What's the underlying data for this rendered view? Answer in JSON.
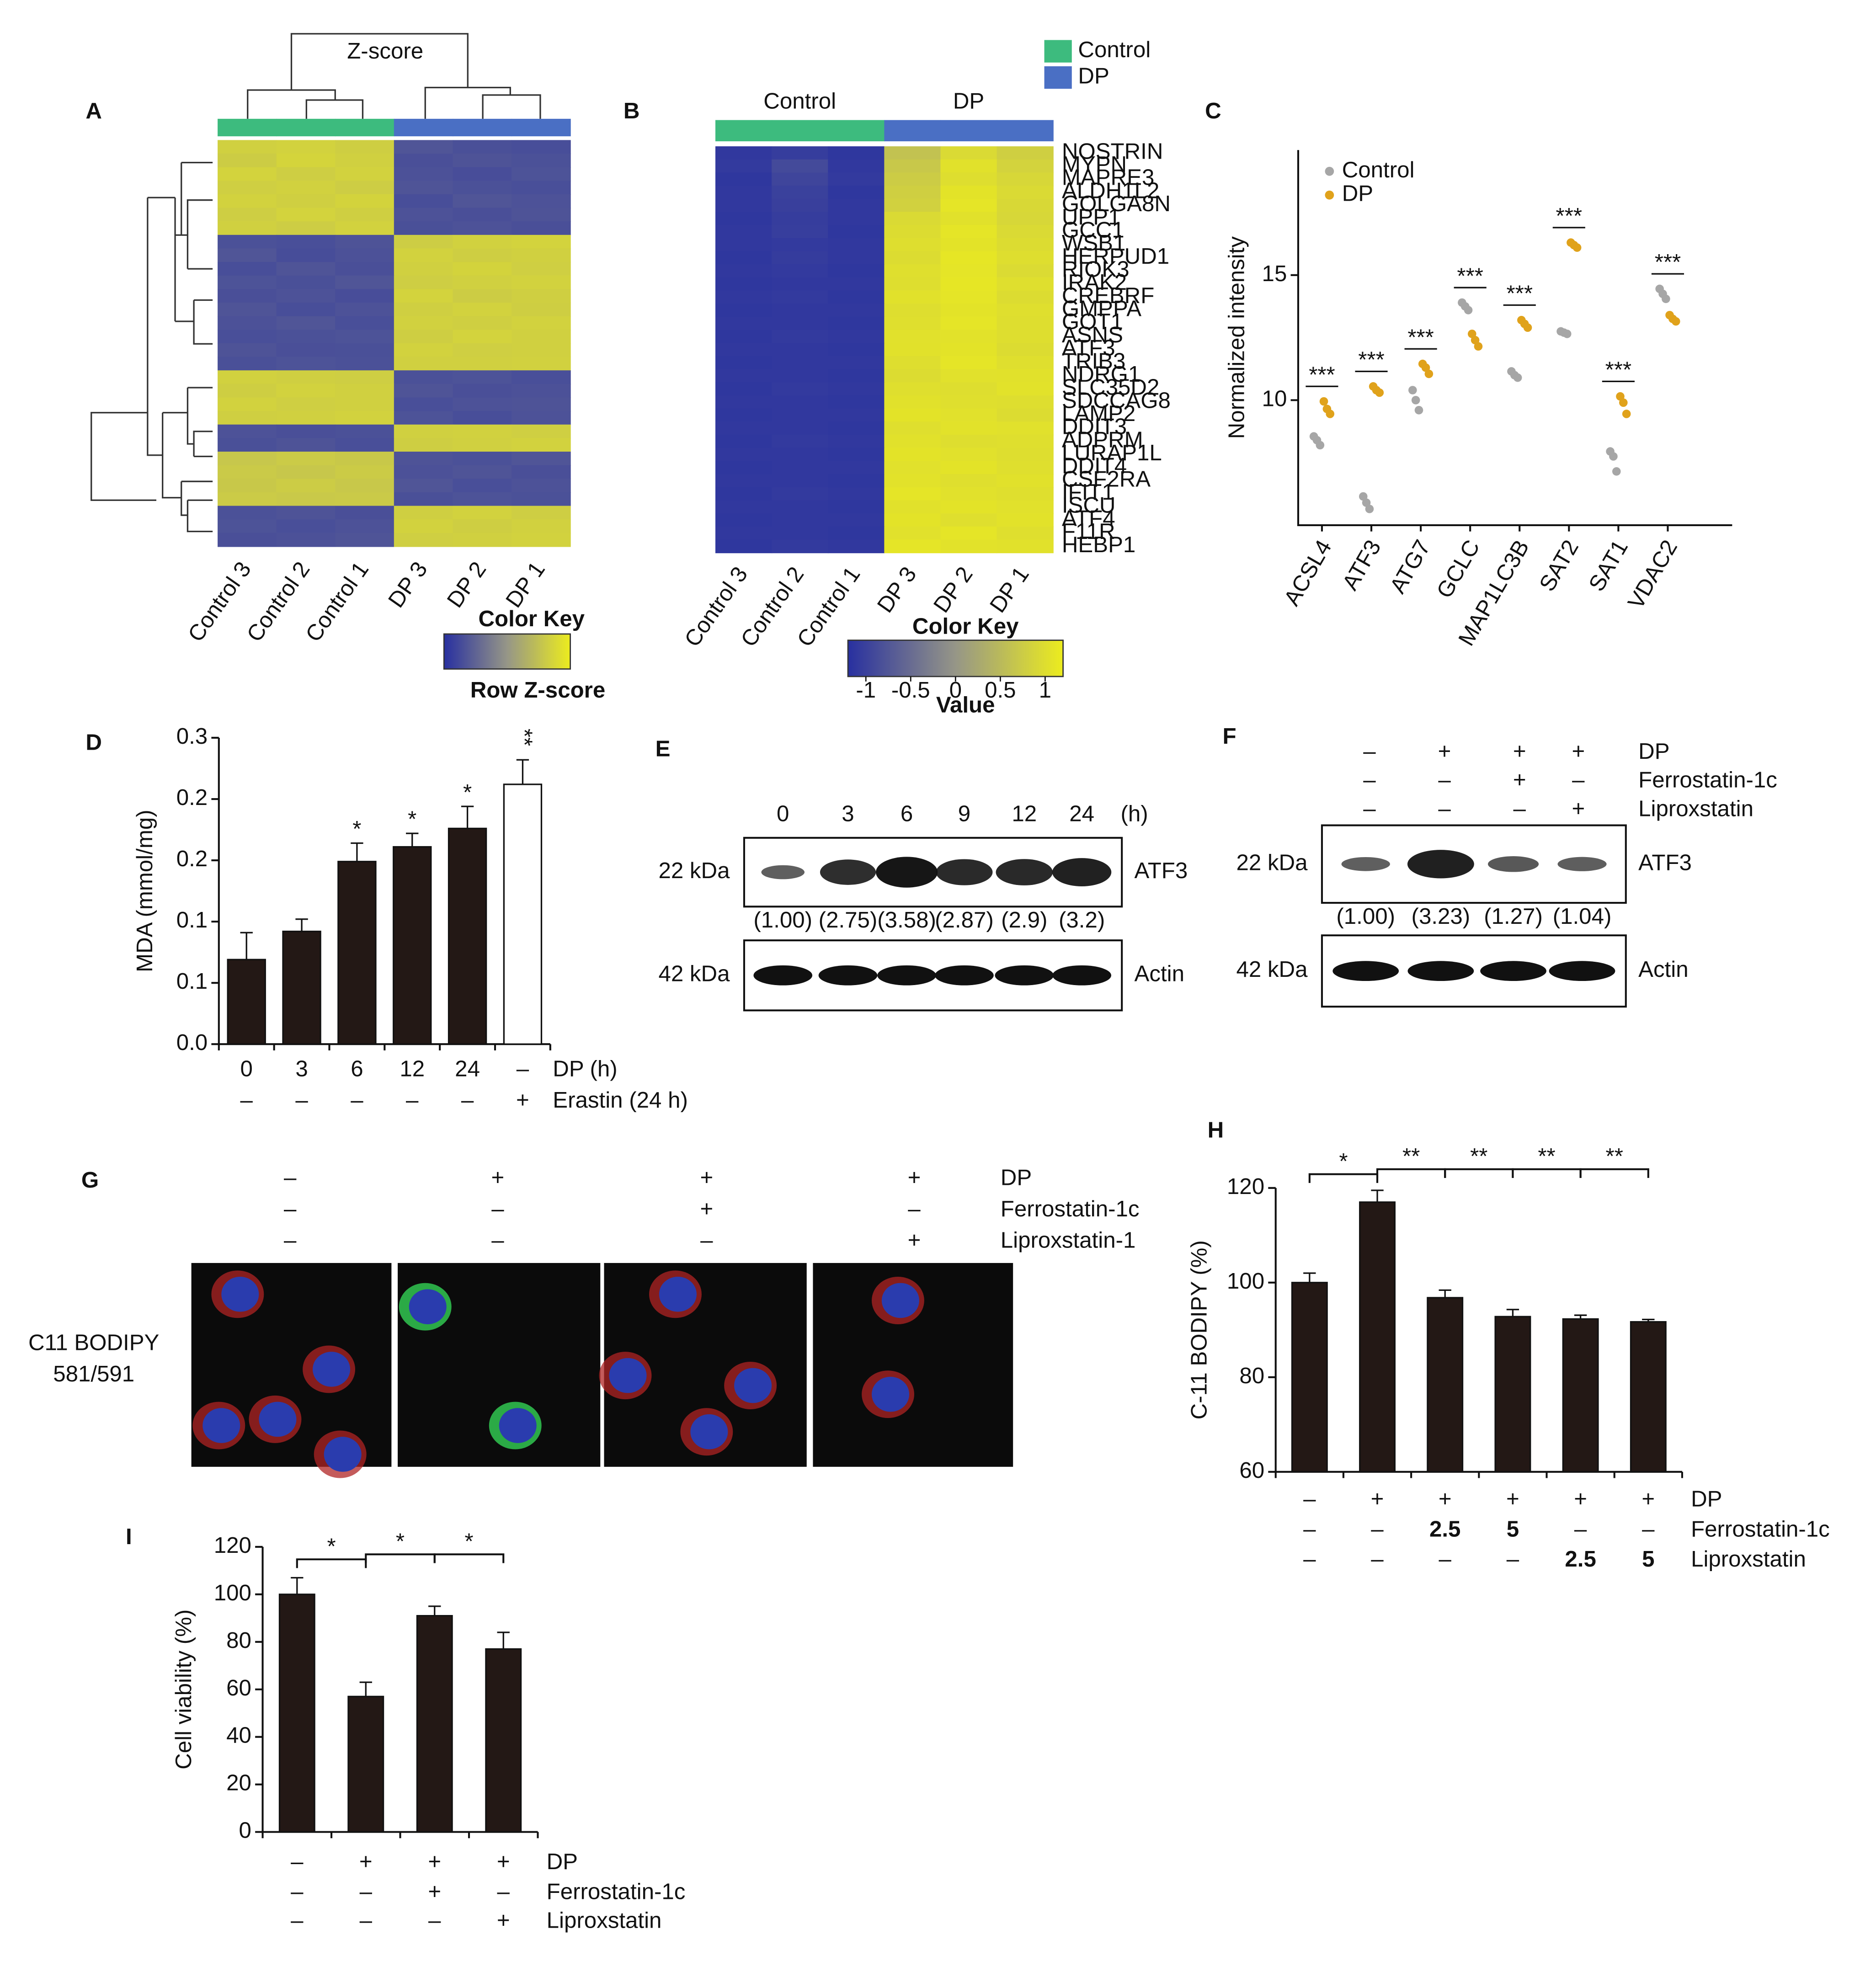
{
  "chart_data": [
    {
      "type": "heatmap",
      "panel": "A",
      "title": "Z-score",
      "columns": [
        "Control 3",
        "Control 2",
        "Control 1",
        "DP 3",
        "DP 2",
        "DP 1"
      ],
      "column_colors": [
        "#3dbb7e",
        "#3dbb7e",
        "#3dbb7e",
        "#4a6fc4",
        "#4a6fc4",
        "#4a6fc4"
      ],
      "values": [
        [
          1.02,
          1.05,
          0.98,
          -0.96,
          -1.03,
          -1.06
        ],
        [
          0.95,
          1.08,
          1.01,
          -1.04,
          -0.98,
          -1.02
        ],
        [
          1.06,
          0.97,
          1.04,
          -1.01,
          -1.07,
          -0.99
        ],
        [
          0.99,
          1.03,
          0.96,
          -0.97,
          -1.02,
          -1.05
        ],
        [
          1.04,
          1.0,
          1.07,
          -1.06,
          -0.95,
          -1.0
        ],
        [
          0.97,
          1.06,
          1.0,
          -1.0,
          -1.04,
          -0.98
        ],
        [
          1.01,
          0.96,
          1.05,
          -1.03,
          -1.0,
          -1.04
        ],
        [
          -1.02,
          -1.05,
          -0.98,
          0.96,
          1.03,
          1.06
        ],
        [
          -0.95,
          -1.08,
          -1.01,
          1.04,
          0.98,
          1.02
        ],
        [
          -1.06,
          -0.97,
          -1.04,
          1.01,
          1.07,
          0.99
        ],
        [
          -0.99,
          -1.03,
          -0.96,
          0.97,
          1.02,
          1.05
        ],
        [
          -1.04,
          -1.0,
          -1.07,
          1.06,
          0.95,
          1.0
        ],
        [
          -0.97,
          -1.06,
          -1.0,
          1.0,
          1.04,
          0.98
        ],
        [
          -1.01,
          -0.96,
          -1.05,
          1.03,
          1.0,
          1.04
        ],
        [
          -1.05,
          -1.02,
          -0.99,
          0.98,
          1.06,
          1.02
        ],
        [
          -0.98,
          -1.04,
          -1.03,
          1.05,
          0.99,
          1.01
        ],
        [
          -1.03,
          -0.99,
          -1.02,
          1.02,
          1.01,
          1.03
        ],
        [
          1.03,
          1.0,
          0.97,
          -1.02,
          -0.99,
          -1.05
        ],
        [
          0.98,
          1.05,
          1.02,
          -0.97,
          -1.04,
          -1.01
        ],
        [
          1.05,
          0.99,
          1.01,
          -1.05,
          -1.0,
          -0.98
        ],
        [
          1.0,
          1.02,
          1.04,
          -0.99,
          -1.06,
          -1.0
        ],
        [
          -1.0,
          -1.04,
          -1.02,
          1.01,
          1.03,
          0.99
        ],
        [
          -1.03,
          -0.98,
          -1.05,
          0.98,
          1.02,
          1.04
        ],
        [
          0.85,
          0.92,
          0.88,
          -0.98,
          -1.02,
          -0.96
        ],
        [
          0.9,
          0.86,
          0.93,
          -1.01,
          -0.97,
          -1.04
        ],
        [
          0.88,
          0.94,
          0.87,
          -0.96,
          -1.05,
          -1.0
        ],
        [
          0.92,
          0.89,
          0.9,
          -1.03,
          -0.99,
          -1.02
        ],
        [
          -1.02,
          -0.98,
          -1.04,
          1.0,
          1.05,
          0.97
        ],
        [
          -0.99,
          -1.05,
          -1.0,
          1.04,
          0.98,
          1.03
        ],
        [
          -1.04,
          -1.01,
          -0.97,
          0.99,
          1.02,
          1.05
        ]
      ],
      "color_key_title": "Color Key",
      "color_key_label": "Row Z-score",
      "color_key_lim": [
        -1.5,
        1.5
      ]
    },
    {
      "type": "heatmap",
      "panel": "B",
      "groups": [
        {
          "name": "Control",
          "color": "#3dbb7e"
        },
        {
          "name": "DP",
          "color": "#4a6fc4"
        }
      ],
      "columns": [
        "Control 3",
        "Control 2",
        "Control 1",
        "DP 3",
        "DP 2",
        "DP 1"
      ],
      "column_colors": [
        "#3dbb7e",
        "#3dbb7e",
        "#3dbb7e",
        "#4a6fc4",
        "#4a6fc4",
        "#4a6fc4"
      ],
      "rows": [
        "NOSTRIN",
        "MYPN",
        "MAPRE3",
        "ALDH1L2",
        "GOLGA8N",
        "UPP1",
        "GCC1",
        "WSB1",
        "HERPUD1",
        "RIOK3",
        "IRAK2",
        "CREBRF",
        "GMPPA",
        "GOT1",
        "ASNS",
        "ATF3",
        "TRIB3",
        "NDRG1",
        "SLC35D2",
        "SDCCAG8",
        "LAMP2",
        "DDIT3",
        "ADPRM",
        "LURAP1L",
        "DDIT4",
        "CSF2RA",
        "IFIT1",
        "ISCU",
        "ATF4",
        "F11R",
        "HEBP1"
      ],
      "highlight_index": 15,
      "highlight_color": "#e01010",
      "values": [
        [
          -1.1,
          -1.05,
          -1.12,
          0.62,
          0.95,
          0.8
        ],
        [
          -1.08,
          -0.9,
          -1.1,
          0.7,
          1.05,
          0.85
        ],
        [
          -1.12,
          -0.95,
          -1.08,
          0.75,
          1.0,
          0.9
        ],
        [
          -1.1,
          -1.0,
          -1.12,
          0.8,
          1.08,
          0.95
        ],
        [
          -1.1,
          -1.02,
          -1.1,
          0.82,
          1.1,
          0.92
        ],
        [
          -1.12,
          -1.05,
          -1.1,
          0.95,
          1.05,
          0.9
        ],
        [
          -1.1,
          -1.04,
          -1.12,
          0.98,
          1.1,
          0.95
        ],
        [
          -1.1,
          -1.08,
          -1.1,
          1.0,
          1.08,
          0.98
        ],
        [
          -1.12,
          -1.06,
          -1.1,
          0.98,
          1.12,
          1.0
        ],
        [
          -1.1,
          -1.08,
          -1.12,
          1.02,
          1.1,
          0.96
        ],
        [
          -1.12,
          -1.1,
          -1.1,
          1.0,
          1.12,
          1.02
        ],
        [
          -1.1,
          -1.08,
          -1.12,
          1.05,
          1.1,
          0.98
        ],
        [
          -1.12,
          -1.1,
          -1.1,
          1.0,
          1.08,
          1.02
        ],
        [
          -1.1,
          -1.1,
          -1.12,
          1.02,
          1.1,
          1.0
        ],
        [
          -1.12,
          -1.08,
          -1.1,
          1.04,
          1.06,
          1.0
        ],
        [
          -1.1,
          -1.1,
          -1.12,
          1.05,
          1.08,
          0.98
        ],
        [
          -1.12,
          -1.1,
          -1.1,
          1.0,
          1.1,
          1.02
        ],
        [
          -1.1,
          -1.1,
          -1.12,
          0.98,
          1.04,
          1.05
        ],
        [
          -1.12,
          -1.08,
          -1.1,
          1.02,
          1.0,
          1.06
        ],
        [
          -1.1,
          -1.1,
          -1.12,
          1.05,
          1.02,
          1.0
        ],
        [
          -1.12,
          -1.1,
          -1.1,
          1.08,
          1.04,
          0.98
        ],
        [
          -1.1,
          -1.1,
          -1.12,
          1.02,
          1.06,
          1.04
        ],
        [
          -1.12,
          -1.08,
          -1.1,
          1.05,
          1.0,
          1.02
        ],
        [
          -1.1,
          -1.1,
          -1.12,
          1.08,
          1.04,
          1.0
        ],
        [
          -1.12,
          -1.1,
          -1.1,
          1.04,
          1.08,
          1.02
        ],
        [
          -1.1,
          -1.1,
          -1.12,
          1.06,
          1.02,
          1.05
        ],
        [
          -1.12,
          -1.08,
          -1.1,
          1.1,
          1.04,
          1.02
        ],
        [
          -1.1,
          -1.1,
          -1.12,
          1.05,
          1.08,
          1.04
        ],
        [
          -1.12,
          -1.1,
          -1.1,
          1.08,
          1.02,
          1.06
        ],
        [
          -1.1,
          -1.1,
          -1.12,
          1.04,
          1.1,
          1.02
        ],
        [
          -1.12,
          -1.08,
          -1.1,
          1.1,
          1.06,
          1.05
        ]
      ],
      "color_key_title": "Color Key",
      "color_key_label": "Value",
      "color_key_lim": [
        -1.2,
        1.2
      ],
      "color_key_ticks": [
        -1,
        -0.5,
        0,
        0.5,
        1
      ]
    },
    {
      "type": "strip",
      "panel": "C",
      "y_label": "Normalized intensity",
      "ylim": [
        5,
        20
      ],
      "yticks": [
        10,
        15
      ],
      "legend": "upper left",
      "categories": [
        "ACSL4",
        "ATF3",
        "ATG7",
        "GCLC",
        "MAP1LC3B",
        "SAT2",
        "SAT1",
        "VDAC2"
      ],
      "series": [
        {
          "name": "Control",
          "color": "#a6a6a6",
          "values": [
            [
              8.55,
              8.4,
              8.2
            ],
            [
              6.15,
              5.9,
              5.65
            ],
            [
              10.4,
              10.0,
              9.6
            ],
            [
              13.9,
              13.75,
              13.6
            ],
            [
              11.15,
              11.0,
              10.9
            ],
            [
              12.75,
              12.7,
              12.65
            ],
            [
              7.95,
              7.75,
              7.15
            ],
            [
              14.45,
              14.25,
              14.05
            ]
          ]
        },
        {
          "name": "DP",
          "color": "#e0a21b",
          "values": [
            [
              9.95,
              9.65,
              9.45
            ],
            [
              10.55,
              10.4,
              10.3
            ],
            [
              11.45,
              11.3,
              11.05
            ],
            [
              12.65,
              12.4,
              12.15
            ],
            [
              13.2,
              13.05,
              12.9
            ],
            [
              16.3,
              16.2,
              16.1
            ],
            [
              10.15,
              9.9,
              9.45
            ],
            [
              13.4,
              13.25,
              13.15
            ]
          ]
        }
      ],
      "sig_labels": [
        "***",
        "***",
        "***",
        "***",
        "***",
        "***",
        "***",
        "***"
      ]
    },
    {
      "type": "bar",
      "panel": "D",
      "y_label": "MDA (mmol/mg)",
      "ylim": [
        0,
        0.25
      ],
      "yticks": [
        {
          "value": 0,
          "label": "0.0"
        },
        {
          "value": 0.05,
          "label": "0.1"
        },
        {
          "value": 0.1,
          "label": "0.1"
        },
        {
          "value": 0.15,
          "label": "0.2"
        },
        {
          "value": 0.2,
          "label": "0.2"
        },
        {
          "value": 0.25,
          "label": "0.3"
        }
      ],
      "values": [
        0.069,
        0.092,
        0.149,
        0.161,
        0.176,
        0.212
      ],
      "errors": [
        0.022,
        0.01,
        0.015,
        0.011,
        0.018,
        0.02
      ],
      "colors": [
        "#231815",
        "#231815",
        "#231815",
        "#231815",
        "#231815",
        "#ffffff"
      ],
      "annotations": [
        null,
        null,
        "*",
        "*",
        "*",
        "**"
      ],
      "conditions": [
        {
          "name": "DP (h)",
          "values": [
            "0",
            "3",
            "6",
            "12",
            "24",
            "–"
          ]
        },
        {
          "name": "Erastin (24 h)",
          "values": [
            "–",
            "–",
            "–",
            "–",
            "–",
            "+"
          ]
        }
      ]
    },
    {
      "type": "blot",
      "panel": "E",
      "lanes": [
        "0",
        "3",
        "6",
        "9",
        "12",
        "24"
      ],
      "lane_unit": "(h)",
      "bands": [
        {
          "size": "22 kDa",
          "protein": "ATF3",
          "values": [
            1.0,
            2.75,
            3.58,
            2.87,
            2.9,
            3.2
          ],
          "value_labels": [
            "(1.00)",
            "(2.75)",
            "(3.58)",
            "(2.87)",
            "(2.9)",
            "(3.2)"
          ]
        },
        {
          "size": "42 kDa",
          "protein": "Actin"
        }
      ]
    },
    {
      "type": "blot",
      "panel": "F",
      "conditions": [
        {
          "name": "DP",
          "values": [
            "–",
            "+",
            "+",
            "+"
          ]
        },
        {
          "name": "Ferrostatin-1c",
          "values": [
            "–",
            "–",
            "+",
            "–"
          ]
        },
        {
          "name": "Liproxstatin",
          "values": [
            "–",
            "–",
            "–",
            "+"
          ]
        }
      ],
      "bands": [
        {
          "size": "22 kDa",
          "protein": "ATF3",
          "values": [
            1.0,
            3.23,
            1.27,
            1.04
          ],
          "value_labels": [
            "(1.00)",
            "(3.23)",
            "(1.27)",
            "(1.04)"
          ]
        },
        {
          "size": "42 kDa",
          "protein": "Actin"
        }
      ]
    },
    {
      "type": "micrograph",
      "panel": "G",
      "conditions": [
        {
          "name": "DP",
          "values": [
            "–",
            "+",
            "+",
            "+"
          ]
        },
        {
          "name": "Ferrostatin-1c",
          "values": [
            "–",
            "–",
            "+",
            "–"
          ]
        },
        {
          "name": "Liproxstatin-1",
          "values": [
            "–",
            "–",
            "–",
            "+"
          ]
        }
      ],
      "stain_label": [
        "C11 BODIPY",
        "581/591"
      ],
      "stain_color": "#2db34a"
    },
    {
      "type": "bar",
      "panel": "H",
      "y_label": "C-11 BODIPY (%)",
      "ylim": [
        60,
        120
      ],
      "yticks": [
        60,
        80,
        100,
        120
      ],
      "values": [
        100,
        117,
        96.8,
        92.8,
        92.3,
        91.7
      ],
      "errors": [
        2,
        2.5,
        1.6,
        1.5,
        0.8,
        0.5
      ],
      "colors": [
        "#231815",
        "#231815",
        "#231815",
        "#231815",
        "#231815",
        "#231815"
      ],
      "brackets": [
        {
          "from": 0,
          "to": 1,
          "label": "*"
        },
        {
          "from": 1,
          "to": 2,
          "label": "**"
        },
        {
          "from": 2,
          "to": 3,
          "label": "**"
        },
        {
          "from": 3,
          "to": 4,
          "label": "**"
        },
        {
          "from": 4,
          "to": 5,
          "label": "**"
        }
      ],
      "conditions": [
        {
          "name": "DP",
          "values": [
            "–",
            "+",
            "+",
            "+",
            "+",
            "+"
          ]
        },
        {
          "name": "Ferrostatin-1c",
          "values": [
            "–",
            "–",
            "2.5",
            "5",
            "–",
            "–"
          ]
        },
        {
          "name": "Liproxstatin",
          "values": [
            "–",
            "–",
            "–",
            "–",
            "2.5",
            "5"
          ]
        }
      ]
    },
    {
      "type": "bar",
      "panel": "I",
      "y_label": "Cell viability (%)",
      "ylim": [
        0,
        120
      ],
      "yticks": [
        0,
        20,
        40,
        60,
        80,
        100,
        120
      ],
      "values": [
        100,
        57,
        91,
        77
      ],
      "errors": [
        7,
        6,
        4,
        7
      ],
      "colors": [
        "#231815",
        "#231815",
        "#231815",
        "#231815"
      ],
      "brackets": [
        {
          "from": 0,
          "to": 1,
          "label": "*"
        },
        {
          "from": 1,
          "to": 2,
          "label": "*"
        },
        {
          "from": 2,
          "to": 3,
          "label": "*"
        }
      ],
      "conditions": [
        {
          "name": "DP",
          "values": [
            "–",
            "+",
            "+",
            "+"
          ]
        },
        {
          "name": "Ferrostatin-1c",
          "values": [
            "–",
            "–",
            "+",
            "–"
          ]
        },
        {
          "name": "Liproxstatin",
          "values": [
            "–",
            "–",
            "–",
            "+"
          ]
        }
      ]
    }
  ]
}
